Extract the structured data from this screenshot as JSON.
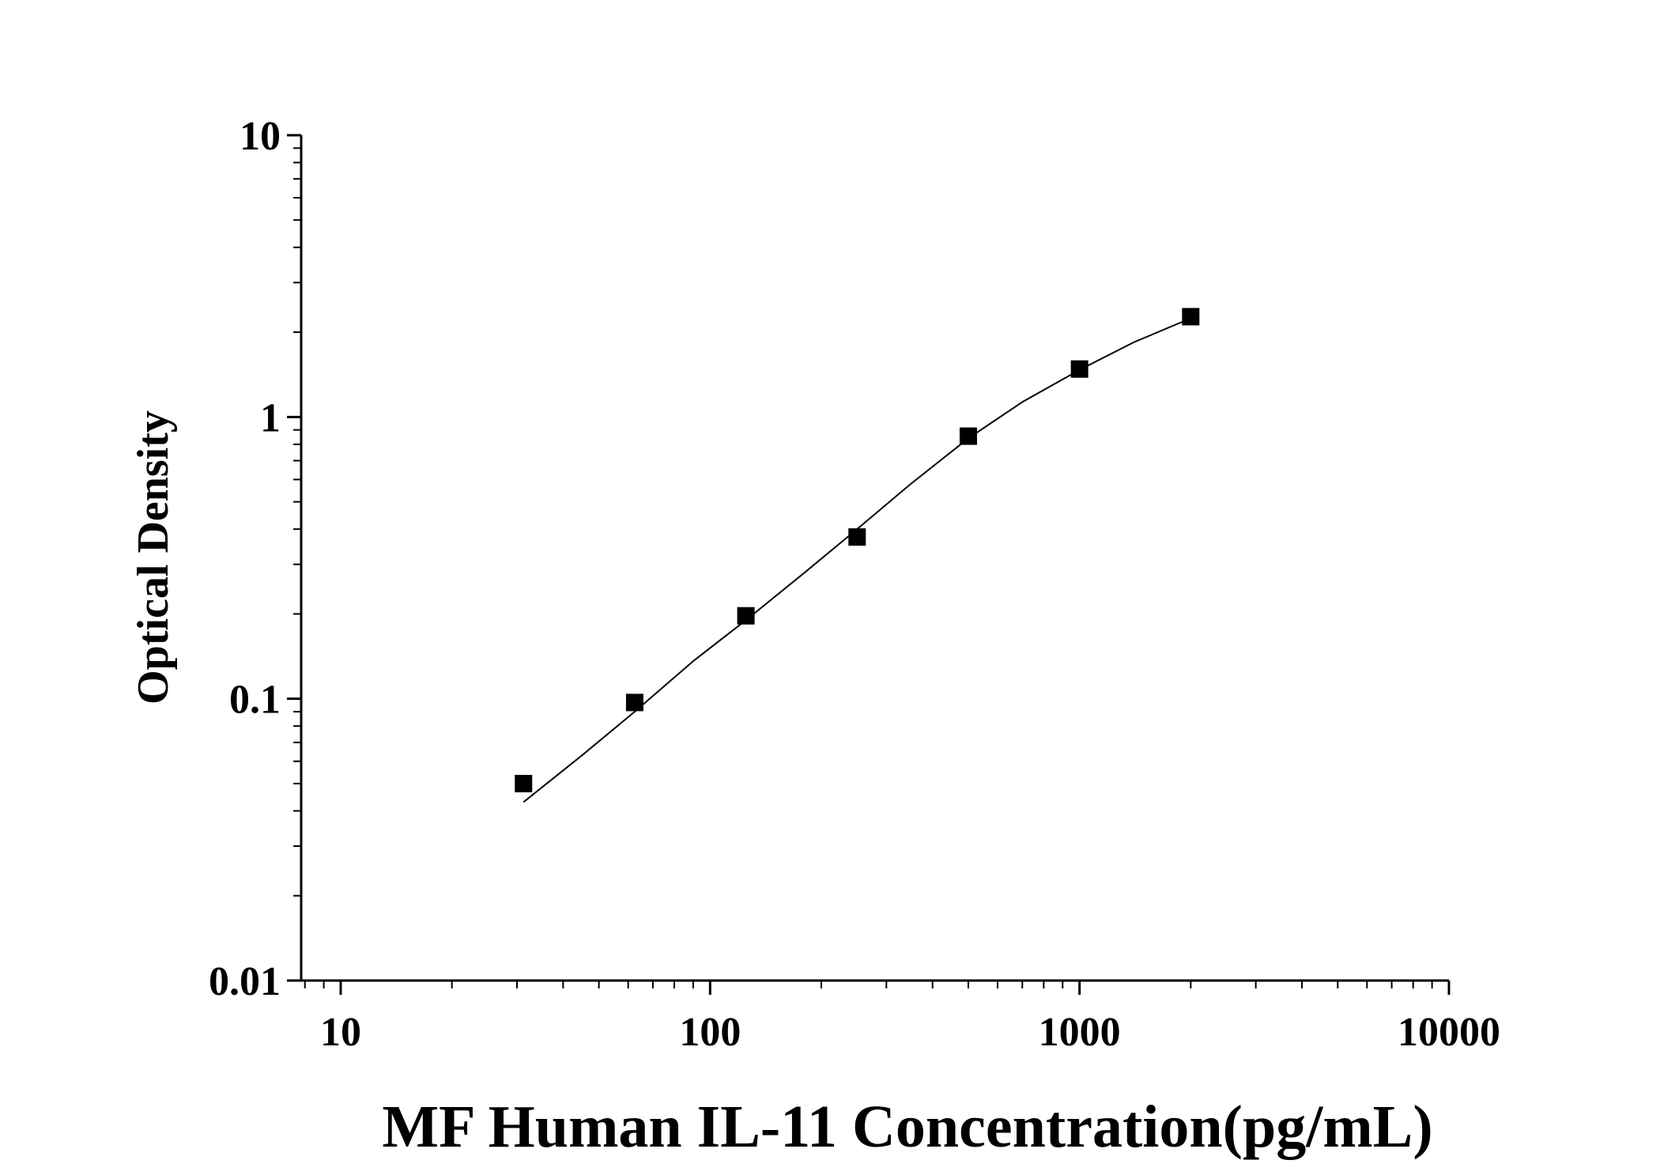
{
  "chart_data": {
    "type": "scatter",
    "title": "",
    "xlabel": "MF Human IL-11 Concentration(pg/mL)",
    "ylabel": "Optical Density",
    "xscale": "log",
    "yscale": "log",
    "xlim": [
      8,
      10000
    ],
    "ylim": [
      0.01,
      10
    ],
    "x_ticks": [
      10,
      100,
      1000,
      10000
    ],
    "x_tick_labels": [
      "10",
      "100",
      "1000",
      "10000"
    ],
    "y_ticks": [
      0.01,
      0.1,
      1,
      10
    ],
    "y_tick_labels": [
      "0.01",
      "0.1",
      "1",
      "10"
    ],
    "grid": false,
    "legend": "none",
    "series": [
      {
        "marker": "square",
        "color": "#000000",
        "x": [
          31.25,
          62.5,
          125,
          250,
          500,
          1000,
          2000
        ],
        "y": [
          0.05,
          0.097,
          0.197,
          0.375,
          0.855,
          1.48,
          2.27
        ]
      }
    ],
    "fit_curve": {
      "color": "#000000",
      "x": [
        31.25,
        45,
        62.5,
        90,
        125,
        180,
        250,
        350,
        500,
        700,
        1000,
        1400,
        2000
      ],
      "y": [
        0.043,
        0.063,
        0.09,
        0.136,
        0.19,
        0.28,
        0.4,
        0.58,
        0.84,
        1.13,
        1.47,
        1.84,
        2.24
      ]
    }
  }
}
